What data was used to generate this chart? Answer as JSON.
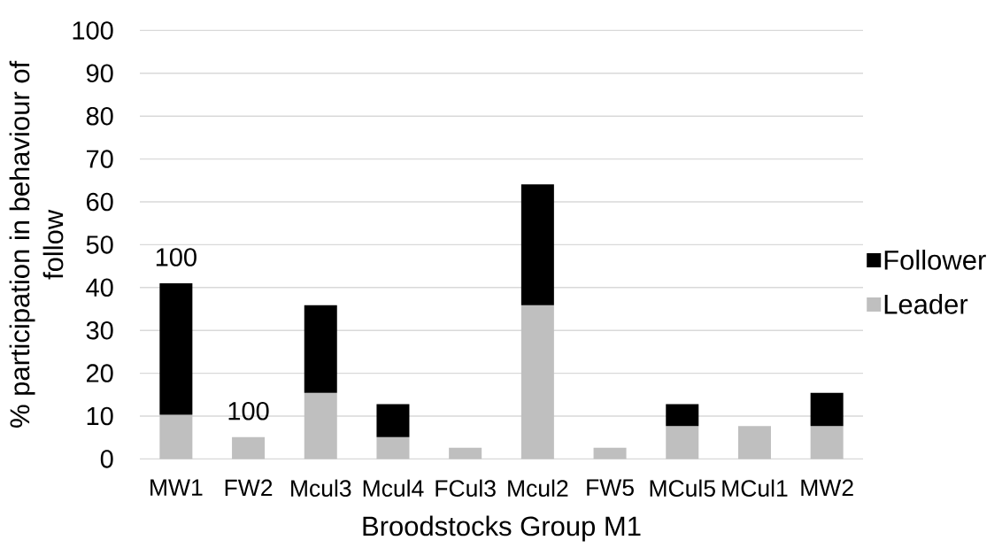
{
  "chart_data": {
    "type": "bar",
    "stacked": true,
    "xlabel": "Broodstocks Group M1",
    "ylabel": "% participation in behaviour of follow",
    "categories": [
      "MW1",
      "FW2",
      "Mcul3",
      "Mcul4",
      "FCul3",
      "Mcul2",
      "FW5",
      "MCul5",
      "MCul1",
      "MW2"
    ],
    "series": [
      {
        "name": "Leader",
        "color": "#bfbfbf",
        "values": [
          10.3,
          5.1,
          15.4,
          5.1,
          2.6,
          35.9,
          2.6,
          7.7,
          7.7,
          7.7
        ]
      },
      {
        "name": "Follower",
        "color": "#000000",
        "values": [
          30.7,
          null,
          20.5,
          7.7,
          null,
          28.2,
          null,
          5.1,
          null,
          7.7
        ]
      }
    ],
    "ylim": [
      0,
      100
    ],
    "yticks": [
      0,
      10,
      20,
      30,
      40,
      50,
      60,
      70,
      80,
      90,
      100
    ],
    "grid": "y",
    "legend": "right",
    "annotations": [
      {
        "text": "100",
        "x": "MW1",
        "y": 41.0
      },
      {
        "text": "100",
        "x": "FW2",
        "y": 5.1
      }
    ]
  }
}
